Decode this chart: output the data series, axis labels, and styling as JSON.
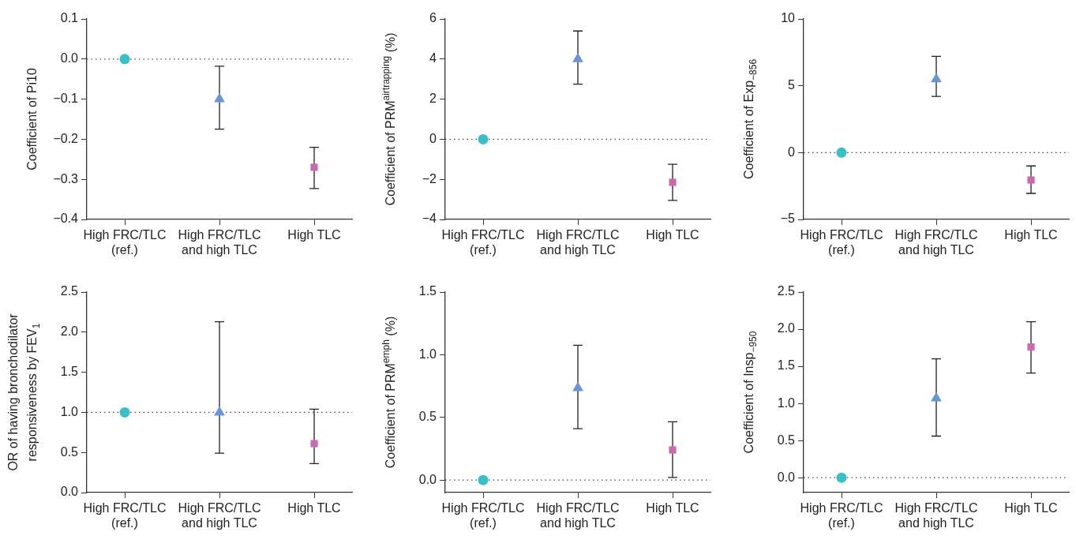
{
  "chart_data": [
    {
      "type": "scatter",
      "ylabel": "Coefficient of Pi10",
      "categories": [
        "High FRC/TLC (ref.)",
        "High FRC/TLC and high TLC",
        "High TLC"
      ],
      "ylim": [
        -0.4,
        0.1
      ],
      "yticks": [
        {
          "value": -0.4,
          "label": "−0.4"
        },
        {
          "value": -0.3,
          "label": "−0.3"
        },
        {
          "value": -0.2,
          "label": "−0.2"
        },
        {
          "value": -0.1,
          "label": "−0.1"
        },
        {
          "value": 0,
          "label": "0.0"
        },
        0.1
      ],
      "ref_lines": [
        {
          "axis": "y",
          "value": 0,
          "line_style": "dotted"
        }
      ],
      "series": [
        {
          "color": "#3bbfc6",
          "marker": "circle",
          "values": [
            0,
            null,
            null
          ]
        },
        {
          "color": "#6a96d4",
          "marker": "triangle",
          "values": [
            null,
            -0.1,
            null
          ],
          "errors": [
            null,
            [
              -0.175,
              -0.018
            ],
            null
          ]
        },
        {
          "color": "#c86aae",
          "marker": "square",
          "values": [
            null,
            null,
            -0.27
          ],
          "errors": [
            null,
            null,
            [
              -0.323,
              -0.22
            ]
          ]
        }
      ]
    },
    {
      "type": "scatter",
      "ylabel": "Coefficient of PRM$^{airtrapping}$ (%)",
      "categories": [
        "High FRC/TLC (ref.)",
        "High FRC/TLC and high TLC",
        "High TLC"
      ],
      "ylim": [
        -4,
        6
      ],
      "yticks": [
        {
          "value": -4,
          "label": "−4"
        },
        {
          "value": -2,
          "label": "−2"
        },
        0,
        2,
        4,
        6
      ],
      "ref_lines": [
        {
          "axis": "y",
          "value": 0,
          "line_style": "dotted"
        }
      ],
      "series": [
        {
          "color": "#3bbfc6",
          "marker": "circle",
          "values": [
            0,
            null,
            null
          ]
        },
        {
          "color": "#6a96d4",
          "marker": "triangle",
          "values": [
            null,
            4.0,
            null
          ],
          "errors": [
            null,
            [
              2.75,
              5.4
            ],
            null
          ]
        },
        {
          "color": "#c86aae",
          "marker": "square",
          "values": [
            null,
            null,
            -2.15
          ],
          "errors": [
            null,
            null,
            [
              -3.05,
              -1.25
            ]
          ]
        }
      ]
    },
    {
      "type": "scatter",
      "ylabel": "Coefficient of Exp$_{−856}$",
      "categories": [
        "High FRC/TLC (ref.)",
        "High FRC/TLC and high TLC",
        "High TLC"
      ],
      "ylim": [
        -5,
        10
      ],
      "yticks": [
        {
          "value": -5,
          "label": "−5"
        },
        0,
        5,
        10
      ],
      "ref_lines": [
        {
          "axis": "y",
          "value": 0,
          "line_style": "dotted"
        }
      ],
      "series": [
        {
          "color": "#3bbfc6",
          "marker": "circle",
          "values": [
            0,
            null,
            null
          ]
        },
        {
          "color": "#6a96d4",
          "marker": "triangle",
          "values": [
            null,
            5.5,
            null
          ],
          "errors": [
            null,
            [
              4.2,
              7.2
            ],
            null
          ]
        },
        {
          "color": "#c86aae",
          "marker": "square",
          "values": [
            null,
            null,
            -2.05
          ],
          "errors": [
            null,
            null,
            [
              -3.05,
              -1.0
            ]
          ]
        }
      ]
    },
    {
      "type": "scatter",
      "ylabel": "OR of having bronchodilator responsiveness by FEV$_{1}$",
      "categories": [
        "High FRC/TLC (ref.)",
        "High FRC/TLC and high TLC",
        "High TLC"
      ],
      "ylim": [
        0,
        2.5
      ],
      "yticks": [
        {
          "value": 0,
          "label": "0.0"
        },
        0.5,
        {
          "value": 1,
          "label": "1.0"
        },
        1.5,
        {
          "value": 2,
          "label": "2.0"
        },
        2.5
      ],
      "ref_lines": [
        {
          "axis": "y",
          "value": 1,
          "line_style": "dotted"
        }
      ],
      "series": [
        {
          "color": "#3bbfc6",
          "marker": "circle",
          "values": [
            1,
            null,
            null
          ]
        },
        {
          "color": "#6a96d4",
          "marker": "triangle",
          "values": [
            null,
            1.0,
            null
          ],
          "errors": [
            null,
            [
              0.49,
              2.13
            ],
            null
          ]
        },
        {
          "color": "#c86aae",
          "marker": "square",
          "values": [
            null,
            null,
            0.61
          ],
          "errors": [
            null,
            null,
            [
              0.36,
              1.04
            ]
          ]
        }
      ]
    },
    {
      "type": "scatter",
      "ylabel": "Coefficient of PRM$^{emph}$ (%)",
      "categories": [
        "High FRC/TLC (ref.)",
        "High FRC/TLC and high TLC",
        "High TLC"
      ],
      "ylim": [
        -0.1,
        1.5
      ],
      "yticks": [
        {
          "value": 0,
          "label": "0.0"
        },
        0.5,
        {
          "value": 1,
          "label": "1.0"
        },
        1.5
      ],
      "ref_lines": [
        {
          "axis": "y",
          "value": 0,
          "line_style": "dotted"
        }
      ],
      "series": [
        {
          "color": "#3bbfc6",
          "marker": "circle",
          "values": [
            0,
            null,
            null
          ]
        },
        {
          "color": "#6a96d4",
          "marker": "triangle",
          "values": [
            null,
            0.735,
            null
          ],
          "errors": [
            null,
            [
              0.41,
              1.075
            ],
            null
          ]
        },
        {
          "color": "#c86aae",
          "marker": "square",
          "values": [
            null,
            null,
            0.24
          ],
          "errors": [
            null,
            null,
            [
              0.02,
              0.465
            ]
          ]
        }
      ]
    },
    {
      "type": "scatter",
      "ylabel": "Coefficient of Insp$_{−950}$",
      "categories": [
        "High FRC/TLC (ref.)",
        "High FRC/TLC and high TLC",
        "High TLC"
      ],
      "ylim": [
        -0.2,
        2.5
      ],
      "yticks": [
        {
          "value": 0,
          "label": "0.0"
        },
        0.5,
        {
          "value": 1,
          "label": "1.0"
        },
        1.5,
        {
          "value": 2,
          "label": "2.0"
        },
        2.5
      ],
      "ref_lines": [
        {
          "axis": "y",
          "value": 0,
          "line_style": "dotted"
        }
      ],
      "series": [
        {
          "color": "#3bbfc6",
          "marker": "circle",
          "values": [
            0,
            null,
            null
          ]
        },
        {
          "color": "#6a96d4",
          "marker": "triangle",
          "values": [
            null,
            1.07,
            null
          ],
          "errors": [
            null,
            [
              0.56,
              1.6
            ],
            null
          ]
        },
        {
          "color": "#c86aae",
          "marker": "square",
          "values": [
            null,
            null,
            1.76
          ],
          "errors": [
            null,
            null,
            [
              1.41,
              2.1
            ]
          ]
        }
      ]
    }
  ]
}
